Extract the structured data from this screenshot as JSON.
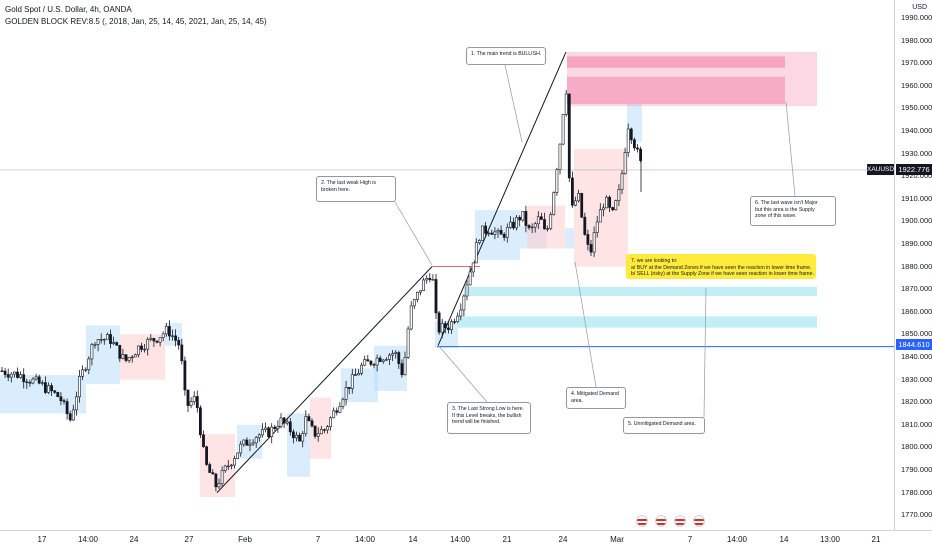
{
  "header": {
    "symbol_line": "Gold Spot / U.S. Dollar, 4h, OANDA",
    "indicator_line": "GOLDEN BLOCK REV:8.5 (, 2018, Jan, 25, 14, 45, 2021, Jan, 25, 14, 45)"
  },
  "price_axis": {
    "currency": "USD",
    "ticks": [
      "1990.000",
      "1980.000",
      "1970.000",
      "1960.000",
      "1950.000",
      "1940.000",
      "1930.000",
      "1920.000",
      "1910.000",
      "1900.000",
      "1890.000",
      "1880.000",
      "1870.000",
      "1860.000",
      "1850.000",
      "1840.000",
      "1830.000",
      "1820.000",
      "1810.000",
      "1800.000",
      "1790.000",
      "1780.000",
      "1770.000"
    ],
    "last_price_symbol": "XAUUSD",
    "last_price": "1922.776",
    "hline_label": "1844.610"
  },
  "time_axis": {
    "ticks": [
      "17",
      "14:00",
      "24",
      "27",
      "Feb",
      "7",
      "14:00",
      "14",
      "14:00",
      "21",
      "24",
      "Mar",
      "7",
      "14:00",
      "14",
      "13:00",
      "21"
    ]
  },
  "annotations": {
    "a1": [
      "1. The main trend is BULLISH."
    ],
    "a2": [
      "2. The last weak High is",
      "broken here."
    ],
    "a3": [
      "3. The Last Strong Low is here.",
      "If this Level breaks, the bullish",
      "trend will be finished."
    ],
    "a4": [
      "4. Mitigated Demand",
      "area."
    ],
    "a5": [
      "5. Unmitigated Demand area."
    ],
    "a6": [
      "6. The last wave isn't Major",
      "but this area is the Supply",
      "zone of this wave."
    ],
    "a7": [
      "7. we are looking to:",
      "a/ BUY at the Demand Zones if we have seen the reaction in lower time frame.",
      "b/ SELL (risky) at the Supply Zone if we have seen reaction in lower time frame."
    ]
  },
  "icons": {
    "flags": [
      "us-flag-icon",
      "us-flag-icon",
      "us-flag-icon",
      "us-flag-icon"
    ]
  },
  "colors": {
    "up": "#ffffff",
    "down": "#131722",
    "supply_zone": "#f48fb1",
    "demand_zone": "#b2ebf2",
    "blue_box": "#bbdefb",
    "red_box": "#ffcdd2",
    "hline": "#2962ff"
  }
}
